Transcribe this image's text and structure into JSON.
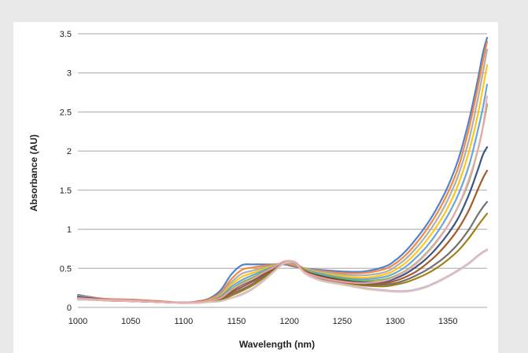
{
  "chart_data": {
    "type": "line",
    "title": "",
    "xlabel": "Wavelength (nm)",
    "ylabel": "Absorbance (AU)",
    "xlim": [
      1000,
      1387
    ],
    "ylim": [
      0,
      3.5
    ],
    "x_ticks": [
      "1000",
      "1050",
      "1100",
      "1150",
      "1200",
      "1250",
      "1300",
      "1350"
    ],
    "y_ticks": [
      "0",
      "0.5",
      "1",
      "1.5",
      "2",
      "2.5",
      "3",
      "3.5"
    ],
    "grid": "horizontal",
    "legend": "none",
    "x": [
      1000,
      1025,
      1050,
      1075,
      1100,
      1115,
      1125,
      1135,
      1145,
      1155,
      1165,
      1175,
      1185,
      1195,
      1205,
      1215,
      1230,
      1250,
      1270,
      1290,
      1300,
      1310,
      1320,
      1330,
      1340,
      1350,
      1360,
      1370,
      1378,
      1383,
      1387
    ],
    "series": [
      {
        "color": "#4472c4",
        "values": [
          0.16,
          0.11,
          0.1,
          0.08,
          0.06,
          0.08,
          0.12,
          0.22,
          0.42,
          0.54,
          0.55,
          0.55,
          0.55,
          0.55,
          0.52,
          0.5,
          0.48,
          0.46,
          0.46,
          0.52,
          0.6,
          0.72,
          0.88,
          1.06,
          1.28,
          1.55,
          1.9,
          2.4,
          2.9,
          3.25,
          3.45
        ]
      },
      {
        "color": "#ed7d31",
        "values": [
          0.15,
          0.11,
          0.1,
          0.08,
          0.06,
          0.08,
          0.11,
          0.19,
          0.36,
          0.48,
          0.51,
          0.53,
          0.55,
          0.56,
          0.53,
          0.5,
          0.47,
          0.44,
          0.44,
          0.49,
          0.56,
          0.67,
          0.82,
          1.0,
          1.21,
          1.47,
          1.8,
          2.3,
          2.8,
          3.15,
          3.4
        ]
      },
      {
        "color": "#a5a5a5",
        "values": [
          0.14,
          0.1,
          0.09,
          0.07,
          0.06,
          0.07,
          0.1,
          0.17,
          0.32,
          0.43,
          0.47,
          0.51,
          0.54,
          0.57,
          0.55,
          0.5,
          0.46,
          0.42,
          0.41,
          0.45,
          0.52,
          0.62,
          0.76,
          0.93,
          1.13,
          1.38,
          1.7,
          2.15,
          2.65,
          3.0,
          3.3
        ]
      },
      {
        "color": "#ffc000",
        "values": [
          0.13,
          0.1,
          0.09,
          0.07,
          0.06,
          0.07,
          0.1,
          0.15,
          0.29,
          0.39,
          0.44,
          0.49,
          0.53,
          0.57,
          0.56,
          0.49,
          0.44,
          0.4,
          0.38,
          0.42,
          0.48,
          0.57,
          0.7,
          0.86,
          1.05,
          1.28,
          1.58,
          2.0,
          2.45,
          2.8,
          3.1
        ]
      },
      {
        "color": "#5b9bd5",
        "values": [
          0.14,
          0.1,
          0.09,
          0.07,
          0.06,
          0.07,
          0.09,
          0.14,
          0.26,
          0.35,
          0.41,
          0.47,
          0.52,
          0.58,
          0.56,
          0.48,
          0.43,
          0.38,
          0.36,
          0.39,
          0.44,
          0.52,
          0.64,
          0.78,
          0.96,
          1.18,
          1.45,
          1.82,
          2.25,
          2.55,
          2.85
        ]
      },
      {
        "color": "#70ad47",
        "values": [
          0.12,
          0.1,
          0.08,
          0.07,
          0.06,
          0.07,
          0.09,
          0.13,
          0.23,
          0.32,
          0.38,
          0.45,
          0.51,
          0.58,
          0.57,
          0.47,
          0.41,
          0.37,
          0.34,
          0.36,
          0.4,
          0.47,
          0.57,
          0.7,
          0.86,
          1.05,
          1.3,
          1.62,
          2.0,
          2.3,
          2.6
        ]
      },
      {
        "color": "#264478",
        "values": [
          0.13,
          0.1,
          0.08,
          0.07,
          0.06,
          0.07,
          0.09,
          0.12,
          0.21,
          0.29,
          0.35,
          0.43,
          0.5,
          0.58,
          0.57,
          0.46,
          0.4,
          0.35,
          0.32,
          0.33,
          0.37,
          0.43,
          0.52,
          0.63,
          0.77,
          0.94,
          1.15,
          1.45,
          1.75,
          1.95,
          2.05
        ]
      },
      {
        "color": "#9e480e",
        "values": [
          0.12,
          0.09,
          0.08,
          0.07,
          0.06,
          0.07,
          0.08,
          0.11,
          0.19,
          0.26,
          0.33,
          0.41,
          0.49,
          0.58,
          0.58,
          0.46,
          0.39,
          0.34,
          0.3,
          0.31,
          0.34,
          0.39,
          0.46,
          0.56,
          0.68,
          0.83,
          1.01,
          1.25,
          1.5,
          1.65,
          1.75
        ]
      },
      {
        "color": "#636363",
        "values": [
          0.12,
          0.09,
          0.08,
          0.07,
          0.06,
          0.07,
          0.08,
          0.1,
          0.17,
          0.23,
          0.3,
          0.39,
          0.48,
          0.57,
          0.58,
          0.45,
          0.38,
          0.33,
          0.29,
          0.29,
          0.31,
          0.35,
          0.41,
          0.48,
          0.57,
          0.68,
          0.82,
          1.0,
          1.18,
          1.28,
          1.35
        ]
      },
      {
        "color": "#997300",
        "values": [
          0.11,
          0.09,
          0.08,
          0.07,
          0.06,
          0.06,
          0.08,
          0.09,
          0.15,
          0.21,
          0.28,
          0.37,
          0.47,
          0.57,
          0.58,
          0.45,
          0.37,
          0.32,
          0.28,
          0.27,
          0.29,
          0.32,
          0.37,
          0.43,
          0.51,
          0.61,
          0.73,
          0.89,
          1.04,
          1.13,
          1.2
        ]
      },
      {
        "color": "#c9a0dc",
        "values": [
          0.1,
          0.09,
          0.08,
          0.07,
          0.06,
          0.06,
          0.07,
          0.08,
          0.12,
          0.17,
          0.24,
          0.34,
          0.46,
          0.57,
          0.58,
          0.44,
          0.35,
          0.3,
          0.25,
          0.22,
          0.21,
          0.21,
          0.23,
          0.27,
          0.33,
          0.4,
          0.48,
          0.57,
          0.66,
          0.71,
          0.74
        ]
      },
      {
        "color": "#d9c8b0",
        "values": [
          0.1,
          0.09,
          0.08,
          0.07,
          0.06,
          0.06,
          0.07,
          0.08,
          0.12,
          0.16,
          0.23,
          0.33,
          0.45,
          0.56,
          0.57,
          0.43,
          0.34,
          0.29,
          0.24,
          0.21,
          0.2,
          0.2,
          0.22,
          0.26,
          0.32,
          0.39,
          0.47,
          0.56,
          0.65,
          0.7,
          0.73
        ]
      },
      {
        "color": "#f4a6b0",
        "values": [
          0.12,
          0.1,
          0.09,
          0.07,
          0.06,
          0.07,
          0.09,
          0.12,
          0.22,
          0.3,
          0.36,
          0.44,
          0.51,
          0.59,
          0.58,
          0.45,
          0.38,
          0.33,
          0.31,
          0.34,
          0.39,
          0.46,
          0.56,
          0.69,
          0.85,
          1.05,
          1.3,
          1.65,
          2.0,
          2.3,
          2.7
        ]
      }
    ]
  }
}
